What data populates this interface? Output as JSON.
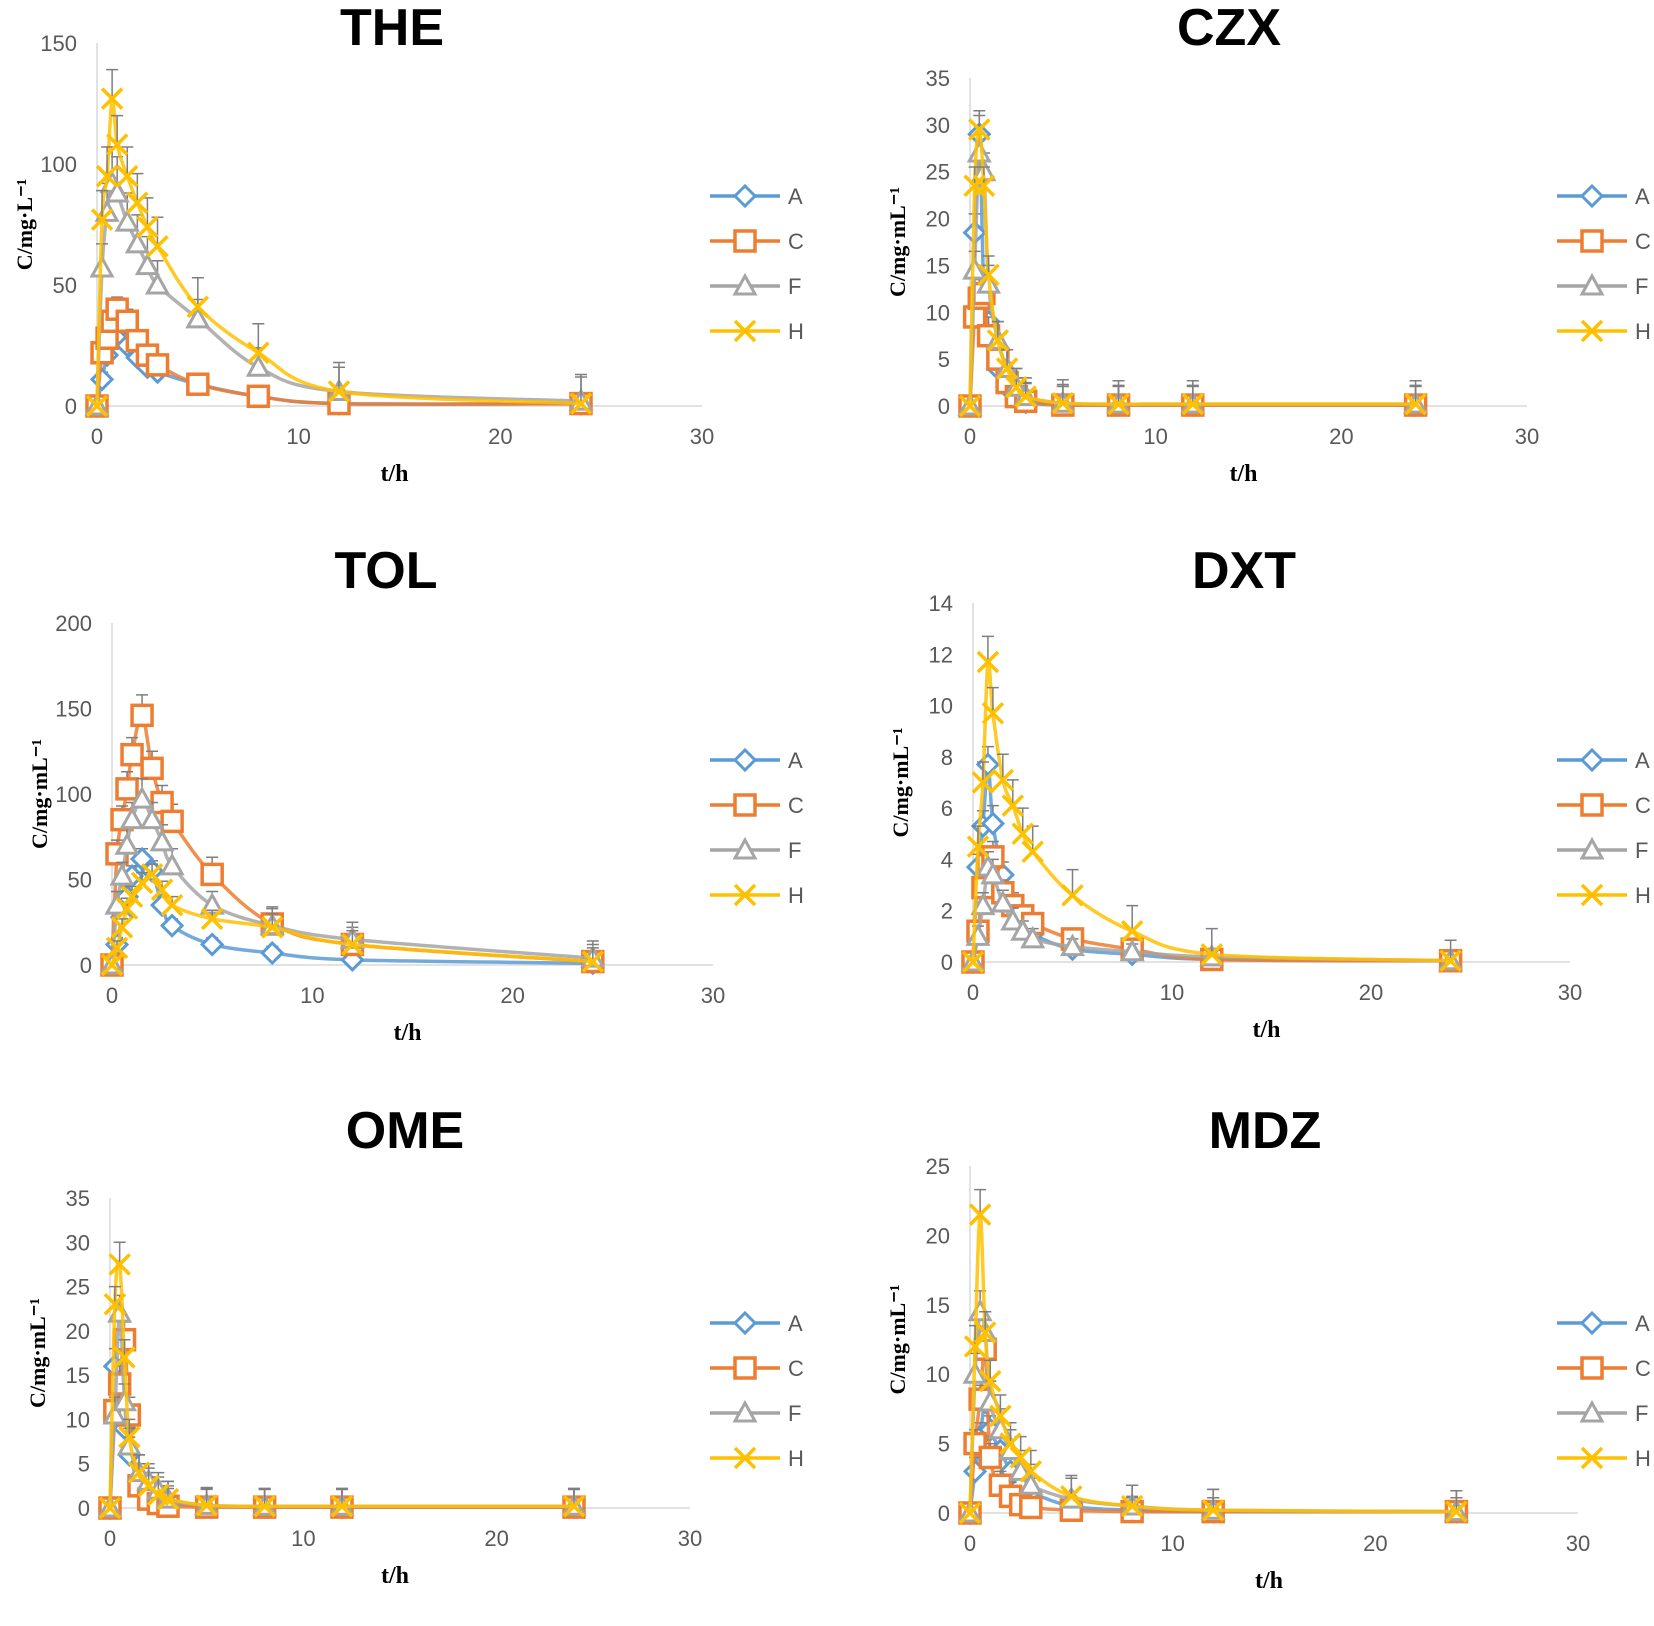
{
  "figure": {
    "series_colors": {
      "A": "#5b9bd5",
      "C": "#ed7d31",
      "F": "#a5a5a5",
      "H": "#ffc000"
    },
    "markers": {
      "A": "diamond",
      "C": "square",
      "F": "triangle",
      "H": "x"
    }
  },
  "chart_data": [
    {
      "type": "line",
      "title": "THE",
      "xlabel": "t/h",
      "ylabel": "C/mg·L⁻¹",
      "xlim": [
        0,
        30
      ],
      "xticks": [
        0,
        10,
        20,
        30
      ],
      "ylim": [
        0,
        150
      ],
      "yticks": [
        0,
        50,
        100,
        150
      ],
      "legend": [
        "A",
        "C",
        "F",
        "H"
      ],
      "x": [
        0,
        0.25,
        0.5,
        0.75,
        1,
        1.5,
        2,
        2.5,
        3,
        5,
        8,
        12,
        24
      ],
      "series": [
        {
          "name": "A",
          "values": [
            0,
            11,
            21,
            27,
            28,
            25,
            20,
            16,
            14,
            9,
            4,
            1,
            1
          ],
          "errors": [
            0,
            3,
            4,
            5,
            5,
            5,
            4,
            4,
            3,
            2,
            2,
            1,
            1
          ]
        },
        {
          "name": "C",
          "values": [
            0,
            22,
            28,
            35,
            40,
            35,
            27,
            21,
            17,
            9,
            4,
            1,
            1
          ],
          "errors": [
            0,
            3,
            4,
            5,
            5,
            5,
            4,
            4,
            3,
            2,
            2,
            1,
            1
          ]
        },
        {
          "name": "F",
          "values": [
            0,
            57,
            80,
            92,
            88,
            76,
            67,
            58,
            50,
            36,
            16,
            6,
            2
          ],
          "errors": [
            0,
            10,
            12,
            15,
            15,
            12,
            12,
            12,
            10,
            8,
            8,
            10,
            10
          ]
        },
        {
          "name": "H",
          "values": [
            0,
            77,
            95,
            127,
            108,
            95,
            84,
            74,
            66,
            41,
            22,
            6,
            1
          ],
          "errors": [
            0,
            12,
            12,
            12,
            12,
            12,
            12,
            12,
            12,
            12,
            12,
            12,
            12
          ]
        }
      ]
    },
    {
      "type": "line",
      "title": "CZX",
      "xlabel": "t/h",
      "ylabel": "C/mg·mL⁻¹",
      "xlim": [
        0,
        30
      ],
      "xticks": [
        0,
        10,
        20,
        30
      ],
      "ylim": [
        0,
        35
      ],
      "yticks": [
        0,
        5,
        10,
        15,
        20,
        25,
        30,
        35
      ],
      "legend": [
        "A",
        "C",
        "F",
        "H"
      ],
      "x": [
        0,
        0.25,
        0.5,
        0.75,
        1,
        1.5,
        2,
        2.5,
        3,
        5,
        8,
        12,
        24
      ],
      "series": [
        {
          "name": "A",
          "values": [
            0,
            18.5,
            29,
            12,
            9,
            4,
            2,
            1,
            0.4,
            0.1,
            0.1,
            0.1,
            0.1
          ],
          "errors": [
            0,
            2,
            2,
            2,
            2,
            2,
            2,
            2,
            2,
            2,
            2,
            2,
            2
          ]
        },
        {
          "name": "C",
          "values": [
            0,
            9.5,
            11.5,
            12,
            7.5,
            5,
            2.5,
            1,
            0.5,
            0.1,
            0.1,
            0.1,
            0.1
          ],
          "errors": [
            0,
            2,
            2,
            2,
            2,
            2,
            2,
            2,
            2,
            2,
            2,
            2,
            2
          ]
        },
        {
          "name": "F",
          "values": [
            0,
            14.5,
            27,
            25,
            13,
            7,
            4,
            2,
            1,
            0.3,
            0.2,
            0.2,
            0.2
          ],
          "errors": [
            0,
            2,
            2,
            2,
            2,
            2,
            2,
            2,
            2,
            2,
            2,
            2,
            2
          ]
        },
        {
          "name": "H",
          "values": [
            0,
            23.5,
            29.5,
            23.5,
            14,
            7,
            4,
            2,
            1,
            0.3,
            0.2,
            0.2,
            0.2
          ],
          "errors": [
            0,
            2,
            2,
            2,
            2,
            2,
            2,
            2,
            2,
            2.5,
            2.5,
            2.5,
            2.5
          ]
        }
      ]
    },
    {
      "type": "line",
      "title": "TOL",
      "xlabel": "t/h",
      "ylabel": "C/mg·mL⁻¹",
      "xlim": [
        0,
        30
      ],
      "xticks": [
        0,
        10,
        20,
        30
      ],
      "ylim": [
        0,
        200
      ],
      "yticks": [
        0,
        50,
        100,
        150,
        200
      ],
      "legend": [
        "A",
        "C",
        "F",
        "H"
      ],
      "x": [
        0,
        0.25,
        0.5,
        0.75,
        1,
        1.5,
        2,
        2.5,
        3,
        5,
        8,
        12,
        24
      ],
      "series": [
        {
          "name": "A",
          "values": [
            0,
            12,
            28,
            40,
            52,
            62,
            55,
            35,
            23,
            12,
            7,
            3,
            1
          ],
          "errors": [
            0,
            4,
            5,
            6,
            6,
            6,
            6,
            5,
            4,
            4,
            4,
            3,
            3
          ]
        },
        {
          "name": "C",
          "values": [
            0,
            65,
            85,
            103,
            123,
            146,
            115,
            95,
            84,
            53,
            24,
            12,
            2
          ],
          "errors": [
            0,
            8,
            8,
            10,
            10,
            12,
            10,
            10,
            10,
            10,
            10,
            10,
            10
          ]
        },
        {
          "name": "F",
          "values": [
            0,
            35,
            52,
            70,
            85,
            97,
            85,
            72,
            58,
            35,
            23,
            15,
            4
          ],
          "errors": [
            0,
            8,
            8,
            10,
            10,
            12,
            10,
            10,
            10,
            8,
            10,
            10,
            10
          ]
        },
        {
          "name": "H",
          "values": [
            0,
            10,
            22,
            33,
            40,
            48,
            53,
            44,
            35,
            27,
            22,
            12,
            2
          ],
          "errors": [
            0,
            4,
            5,
            6,
            6,
            6,
            6,
            5,
            5,
            5,
            8,
            8,
            8
          ]
        }
      ]
    },
    {
      "type": "line",
      "title": "DXT",
      "xlabel": "t/h",
      "ylabel": "C/mg·mL⁻¹",
      "xlim": [
        0,
        30
      ],
      "xticks": [
        0,
        10,
        20,
        30
      ],
      "ylim": [
        0,
        14
      ],
      "yticks": [
        0,
        2,
        4,
        6,
        8,
        10,
        12,
        14
      ],
      "legend": [
        "A",
        "C",
        "F",
        "H"
      ],
      "x": [
        0,
        0.25,
        0.5,
        0.75,
        1,
        1.5,
        2,
        2.5,
        3,
        5,
        8,
        12,
        24
      ],
      "series": [
        {
          "name": "A",
          "values": [
            0,
            3.7,
            5.3,
            7.7,
            5.4,
            3.4,
            2.2,
            1.6,
            1.1,
            0.5,
            0.3,
            0.1,
            0.05
          ],
          "errors": [
            0,
            0.5,
            0.6,
            0.7,
            0.7,
            0.5,
            0.5,
            0.4,
            0.4,
            0.3,
            0.3,
            0.2,
            0.2
          ]
        },
        {
          "name": "C",
          "values": [
            0,
            1.2,
            2.9,
            3.8,
            4.1,
            2.7,
            2.2,
            1.8,
            1.5,
            0.9,
            0.5,
            0.1,
            0.05
          ],
          "errors": [
            0,
            0.4,
            0.5,
            0.6,
            0.6,
            0.5,
            0.5,
            0.4,
            0.4,
            0.3,
            0.3,
            0.2,
            0.2
          ]
        },
        {
          "name": "F",
          "values": [
            0,
            1.0,
            2.2,
            3.7,
            3.4,
            2.3,
            1.6,
            1.2,
            0.9,
            0.6,
            0.4,
            0.2,
            0.05
          ],
          "errors": [
            0,
            0.4,
            0.5,
            0.6,
            0.6,
            0.5,
            0.5,
            0.4,
            0.4,
            0.3,
            0.3,
            0.2,
            0.2
          ]
        },
        {
          "name": "H",
          "values": [
            0,
            4.5,
            7.0,
            11.7,
            9.7,
            7.1,
            6.1,
            5.0,
            4.3,
            2.6,
            1.2,
            0.3,
            0.05
          ],
          "errors": [
            0,
            0.8,
            0.8,
            1.0,
            1.0,
            1.0,
            1.0,
            1.0,
            1.0,
            1.0,
            1.0,
            1.0,
            0.8
          ]
        }
      ]
    },
    {
      "type": "line",
      "title": "OME",
      "xlabel": "t/h",
      "ylabel": "C/mg·mL⁻¹",
      "xlim": [
        0,
        30
      ],
      "xticks": [
        0,
        10,
        20,
        30
      ],
      "ylim": [
        0,
        35
      ],
      "yticks": [
        0,
        5,
        10,
        15,
        20,
        25,
        30,
        35
      ],
      "legend": [
        "A",
        "C",
        "F",
        "H"
      ],
      "x": [
        0,
        0.25,
        0.5,
        0.75,
        1,
        1.5,
        2,
        2.5,
        3,
        5,
        8,
        12,
        24
      ],
      "series": [
        {
          "name": "A",
          "values": [
            0,
            16,
            11,
            9,
            6,
            3,
            2,
            1,
            0.5,
            0.2,
            0.1,
            0.1,
            0.1
          ],
          "errors": [
            0,
            2,
            2,
            2,
            2,
            2,
            2,
            2,
            2,
            2,
            2,
            2,
            2
          ]
        },
        {
          "name": "C",
          "values": [
            0,
            11,
            14,
            19,
            10.5,
            2.5,
            1,
            0.5,
            0.2,
            0.1,
            0.1,
            0.1,
            0.1
          ],
          "errors": [
            0,
            2,
            2,
            2,
            2,
            2,
            2,
            2,
            2,
            2,
            2,
            2,
            2
          ]
        },
        {
          "name": "F",
          "values": [
            0,
            10.5,
            22,
            12,
            7,
            4,
            3,
            2,
            1,
            0.3,
            0.2,
            0.2,
            0.2
          ],
          "errors": [
            0,
            2,
            2,
            2,
            2,
            2,
            2,
            2,
            2,
            2,
            2,
            2,
            2
          ]
        },
        {
          "name": "H",
          "values": [
            0,
            23,
            27.5,
            17,
            8,
            4,
            2.5,
            1.5,
            1,
            0.3,
            0.2,
            0.2,
            0.2
          ],
          "errors": [
            0,
            2,
            2.5,
            2,
            2,
            2,
            2,
            2,
            2,
            2,
            2,
            2,
            2
          ]
        }
      ]
    },
    {
      "type": "line",
      "title": "MDZ",
      "xlabel": "t/h",
      "ylabel": "C/mg·mL⁻¹",
      "xlim": [
        0,
        30
      ],
      "xticks": [
        0,
        10,
        20,
        30
      ],
      "ylim": [
        0,
        25
      ],
      "yticks": [
        0,
        5,
        10,
        15,
        20,
        25
      ],
      "legend": [
        "A",
        "C",
        "F",
        "H"
      ],
      "x": [
        0,
        0.25,
        0.5,
        0.75,
        1,
        1.5,
        2,
        2.5,
        3,
        5,
        8,
        12,
        24
      ],
      "series": [
        {
          "name": "A",
          "values": [
            0,
            3,
            5.5,
            8,
            6,
            4.5,
            3,
            2,
            1.5,
            0.5,
            0.2,
            0.1,
            0.1
          ],
          "errors": [
            0,
            1,
            1,
            1,
            1,
            1,
            1,
            1,
            1,
            1,
            1,
            1,
            1
          ]
        },
        {
          "name": "C",
          "values": [
            0,
            5,
            8.2,
            11.8,
            4,
            2,
            1.2,
            0.6,
            0.4,
            0.2,
            0.1,
            0.1,
            0.1
          ],
          "errors": [
            0,
            1,
            1,
            1,
            1,
            1,
            1,
            1,
            1,
            1,
            1,
            1,
            1
          ]
        },
        {
          "name": "F",
          "values": [
            0,
            10,
            14.5,
            13,
            8,
            6,
            4.5,
            3,
            2,
            1,
            0.5,
            0.2,
            0.1
          ],
          "errors": [
            0,
            1.5,
            1.5,
            1.5,
            1.5,
            1.5,
            1.5,
            1.5,
            1.5,
            1.5,
            1.5,
            1.5,
            1.5
          ]
        },
        {
          "name": "H",
          "values": [
            0,
            12,
            21.5,
            13,
            9.5,
            7,
            5,
            4,
            3,
            1.2,
            0.5,
            0.2,
            0.1
          ],
          "errors": [
            0,
            1.5,
            1.8,
            1.5,
            1.5,
            1.5,
            1.5,
            1.5,
            1.5,
            1.5,
            1.5,
            1.5,
            1.5
          ]
        }
      ]
    }
  ]
}
